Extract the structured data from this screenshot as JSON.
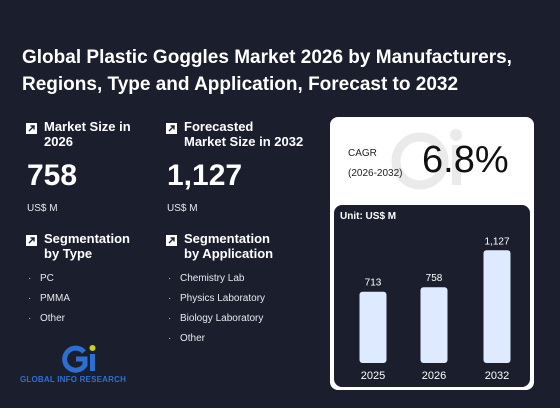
{
  "title": "Global Plastic Goggles Market 2026 by Manufacturers, Regions, Type and Application, Forecast to 2032",
  "market_size": {
    "label_line1": "Market Size in",
    "label_line2": "2026",
    "value": "758",
    "unit": "US$ M"
  },
  "forecast": {
    "label_line1": "Forecasted",
    "label_line2": "Market Size in 2032",
    "value": "1,127",
    "unit": "US$ M"
  },
  "seg_type": {
    "label_line1": "Segmentation",
    "label_line2": "by Type",
    "items": [
      "PC",
      "PMMA",
      "Other"
    ]
  },
  "seg_app": {
    "label_line1": "Segmentation",
    "label_line2": "by Application",
    "items": [
      "Chemistry Lab",
      "Physics Laboratory",
      "Biology Laboratory",
      "Other"
    ]
  },
  "cagr": {
    "label_line1": "CAGR",
    "label_line2": "(2026-2032)",
    "value": "6.8%"
  },
  "logo": {
    "mark": "Gi",
    "text": "GLOBAL INFO RESEARCH"
  },
  "colors": {
    "background": "#1b1e2c",
    "bar_fill": "#ddeaff",
    "card": "#ffffff",
    "logo_blue": "#2d6fd0",
    "logo_yellow": "#c9d11f"
  },
  "chart_data": {
    "type": "bar",
    "unit_label": "Unit: US$ M",
    "categories": [
      "2025",
      "2026",
      "2032"
    ],
    "values": [
      713,
      758,
      1127
    ],
    "value_labels": [
      "713",
      "758",
      "1,127"
    ],
    "ylim": [
      0,
      1200
    ],
    "grid": false
  }
}
